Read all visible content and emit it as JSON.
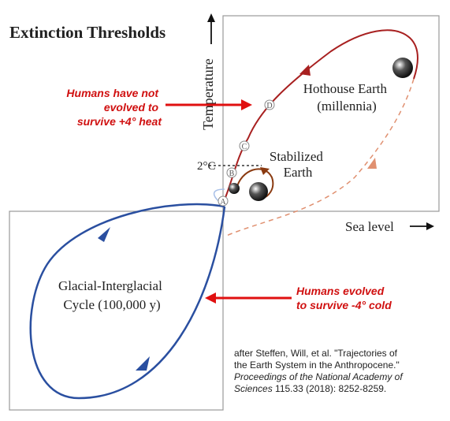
{
  "title": "Extinction Thresholds",
  "axes": {
    "y_label": "Temperature",
    "x_label": "Sea level"
  },
  "states": {
    "hothouse": [
      "Hothouse Earth",
      "(millennia)"
    ],
    "stabilized": [
      "Stabilized",
      "Earth"
    ],
    "glacial": [
      "Glacial-Interglacial",
      "Cycle  (100,000 y)"
    ],
    "threshold": "2°C"
  },
  "points": [
    "A",
    "B",
    "C",
    "D"
  ],
  "annotations": {
    "heat": [
      "Humans have not",
      "evolved to",
      "survive +4° heat"
    ],
    "cold": [
      "Humans evolved",
      "to survive -4° cold"
    ]
  },
  "citation": {
    "line1": "after Steffen, Will, et al. \"Trajectories of",
    "line2": "the Earth System in the Anthropocene.\"",
    "journal1": "Proceedings of the National Academy of",
    "journal2": "Sciences",
    "details": " 115.33 (2018): 8252-8259."
  }
}
